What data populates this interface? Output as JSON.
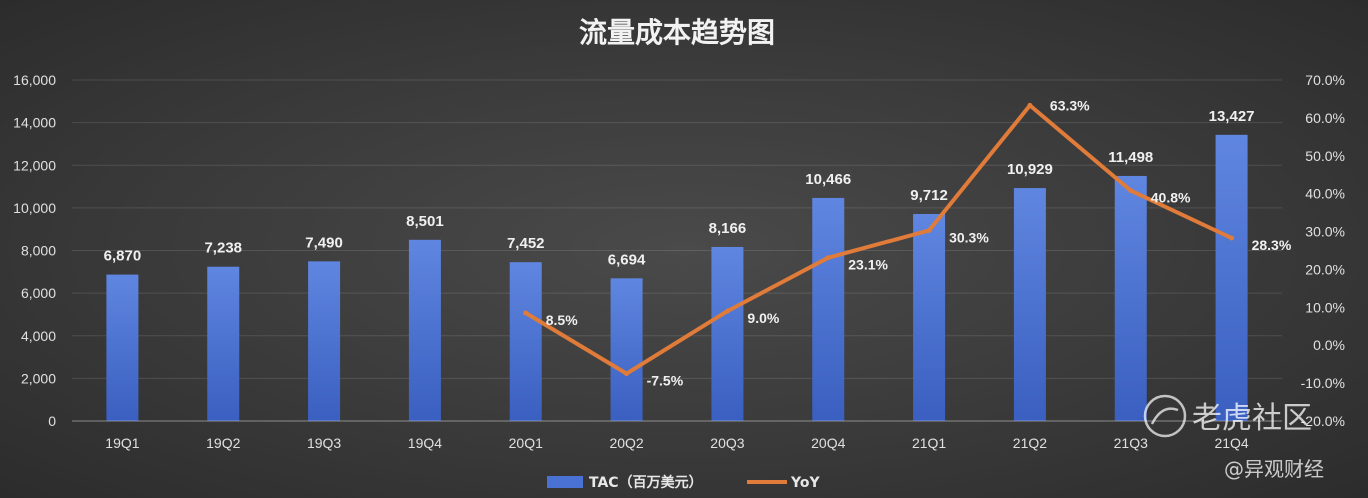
{
  "chart_data": {
    "type": "bar",
    "title": "流量成本趋势图",
    "categories": [
      "19Q1",
      "19Q2",
      "19Q3",
      "19Q4",
      "20Q1",
      "20Q2",
      "20Q3",
      "20Q4",
      "21Q1",
      "21Q2",
      "21Q3",
      "21Q4"
    ],
    "series": [
      {
        "name": "TAC（百万美元）",
        "type": "bar",
        "axis": "left",
        "color": "#4a72d4",
        "values": [
          6870,
          7238,
          7490,
          8501,
          7452,
          6694,
          8166,
          10466,
          9712,
          10929,
          11498,
          13427
        ],
        "labels": [
          "6,870",
          "7,238",
          "7,490",
          "8,501",
          "7,452",
          "6,694",
          "8,166",
          "10,466",
          "9,712",
          "10,929",
          "11,498",
          "13,427"
        ]
      },
      {
        "name": "YoY",
        "type": "line",
        "axis": "right",
        "color": "#e07b39",
        "values": [
          null,
          null,
          null,
          null,
          8.5,
          -7.5,
          9.0,
          23.1,
          30.3,
          63.3,
          40.8,
          28.3
        ],
        "labels": [
          null,
          null,
          null,
          null,
          "8.5%",
          "-7.5%",
          "9.0%",
          "23.1%",
          "30.3%",
          "63.3%",
          "40.8%",
          "28.3%"
        ]
      }
    ],
    "y_left": {
      "min": 0,
      "max": 16000,
      "ticks": [
        0,
        2000,
        4000,
        6000,
        8000,
        10000,
        12000,
        14000,
        16000
      ],
      "tick_labels": [
        "0",
        "2,000",
        "4,000",
        "6,000",
        "8,000",
        "10,000",
        "12,000",
        "14,000",
        "16,000"
      ]
    },
    "y_right": {
      "min": -20,
      "max": 70,
      "ticks": [
        -20,
        -10,
        0,
        10,
        20,
        30,
        40,
        50,
        60,
        70
      ],
      "tick_labels": [
        "-20.0%",
        "-10.0%",
        "0.0%",
        "10.0%",
        "20.0%",
        "30.0%",
        "40.0%",
        "50.0%",
        "60.0%",
        "70.0%"
      ]
    },
    "grid": true,
    "legend": "bottom"
  },
  "watermark": {
    "brand": "老虎社区",
    "credit": "@异观财经"
  }
}
